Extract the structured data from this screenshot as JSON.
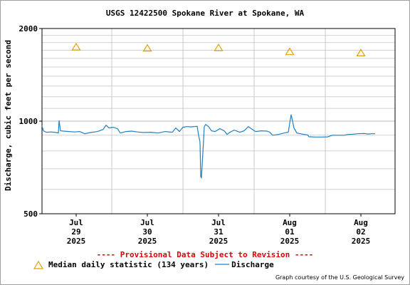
{
  "chart_data": {
    "type": "line",
    "title": "USGS 12422500 Spokane River at Spokane, WA",
    "xlabel": "",
    "ylabel": "Discharge, cubic feet per second",
    "y_scale": "log",
    "ylim": [
      500,
      2000
    ],
    "y_ticks": [
      "500",
      "1000",
      "2000"
    ],
    "xlim": [
      -0.48,
      4.48
    ],
    "x_ticks": [
      {
        "month": "Jul",
        "day": "29",
        "year": "2025"
      },
      {
        "month": "Jul",
        "day": "30",
        "year": "2025"
      },
      {
        "month": "Jul",
        "day": "31",
        "year": "2025"
      },
      {
        "month": "Aug",
        "day": "01",
        "year": "2025"
      },
      {
        "month": "Aug",
        "day": "02",
        "year": "2025"
      }
    ],
    "grid": true,
    "legend_position": "bottom-left",
    "series": [
      {
        "name": "Median daily statistic (134 years)",
        "marker": "triangle",
        "color": "#e0a000",
        "points": [
          {
            "x": 0.0,
            "y": 1740
          },
          {
            "x": 1.0,
            "y": 1725
          },
          {
            "x": 2.0,
            "y": 1730
          },
          {
            "x": 3.0,
            "y": 1680
          },
          {
            "x": 4.0,
            "y": 1665
          }
        ]
      },
      {
        "name": "Discharge",
        "marker": "line",
        "color": "#2080c0",
        "points": [
          {
            "x": -0.48,
            "y": 965
          },
          {
            "x": -0.46,
            "y": 930
          },
          {
            "x": -0.42,
            "y": 920
          },
          {
            "x": -0.35,
            "y": 922
          },
          {
            "x": -0.28,
            "y": 918
          },
          {
            "x": -0.25,
            "y": 915
          },
          {
            "x": -0.24,
            "y": 1005
          },
          {
            "x": -0.22,
            "y": 930
          },
          {
            "x": -0.18,
            "y": 928
          },
          {
            "x": -0.1,
            "y": 925
          },
          {
            "x": -0.02,
            "y": 922
          },
          {
            "x": 0.05,
            "y": 925
          },
          {
            "x": 0.12,
            "y": 910
          },
          {
            "x": 0.2,
            "y": 918
          },
          {
            "x": 0.3,
            "y": 925
          },
          {
            "x": 0.38,
            "y": 940
          },
          {
            "x": 0.42,
            "y": 970
          },
          {
            "x": 0.46,
            "y": 950
          },
          {
            "x": 0.52,
            "y": 955
          },
          {
            "x": 0.58,
            "y": 945
          },
          {
            "x": 0.62,
            "y": 915
          },
          {
            "x": 0.7,
            "y": 925
          },
          {
            "x": 0.78,
            "y": 928
          },
          {
            "x": 0.86,
            "y": 922
          },
          {
            "x": 0.95,
            "y": 918
          },
          {
            "x": 1.05,
            "y": 920
          },
          {
            "x": 1.15,
            "y": 915
          },
          {
            "x": 1.25,
            "y": 925
          },
          {
            "x": 1.35,
            "y": 920
          },
          {
            "x": 1.4,
            "y": 950
          },
          {
            "x": 1.45,
            "y": 925
          },
          {
            "x": 1.5,
            "y": 955
          },
          {
            "x": 1.55,
            "y": 960
          },
          {
            "x": 1.62,
            "y": 958
          },
          {
            "x": 1.7,
            "y": 962
          },
          {
            "x": 1.72,
            "y": 900
          },
          {
            "x": 1.74,
            "y": 855
          },
          {
            "x": 1.75,
            "y": 660
          },
          {
            "x": 1.76,
            "y": 655
          },
          {
            "x": 1.78,
            "y": 790
          },
          {
            "x": 1.8,
            "y": 960
          },
          {
            "x": 1.82,
            "y": 975
          },
          {
            "x": 1.86,
            "y": 960
          },
          {
            "x": 1.9,
            "y": 930
          },
          {
            "x": 1.95,
            "y": 925
          },
          {
            "x": 2.02,
            "y": 945
          },
          {
            "x": 2.08,
            "y": 930
          },
          {
            "x": 2.12,
            "y": 905
          },
          {
            "x": 2.16,
            "y": 920
          },
          {
            "x": 2.22,
            "y": 935
          },
          {
            "x": 2.3,
            "y": 920
          },
          {
            "x": 2.36,
            "y": 930
          },
          {
            "x": 2.42,
            "y": 960
          },
          {
            "x": 2.46,
            "y": 945
          },
          {
            "x": 2.52,
            "y": 925
          },
          {
            "x": 2.6,
            "y": 930
          },
          {
            "x": 2.68,
            "y": 928
          },
          {
            "x": 2.72,
            "y": 920
          },
          {
            "x": 2.76,
            "y": 900
          },
          {
            "x": 2.84,
            "y": 905
          },
          {
            "x": 2.92,
            "y": 915
          },
          {
            "x": 2.98,
            "y": 920
          },
          {
            "x": 3.02,
            "y": 1050
          },
          {
            "x": 3.06,
            "y": 950
          },
          {
            "x": 3.1,
            "y": 915
          },
          {
            "x": 3.15,
            "y": 910
          },
          {
            "x": 3.2,
            "y": 905
          },
          {
            "x": 3.25,
            "y": 902
          },
          {
            "x": 3.27,
            "y": 890
          },
          {
            "x": 3.35,
            "y": 888
          },
          {
            "x": 3.45,
            "y": 888
          },
          {
            "x": 3.53,
            "y": 889
          },
          {
            "x": 3.6,
            "y": 900
          },
          {
            "x": 3.68,
            "y": 900
          },
          {
            "x": 3.76,
            "y": 900
          },
          {
            "x": 3.82,
            "y": 905
          },
          {
            "x": 3.88,
            "y": 906
          },
          {
            "x": 3.95,
            "y": 910
          },
          {
            "x": 4.05,
            "y": 912
          },
          {
            "x": 4.1,
            "y": 908
          },
          {
            "x": 4.15,
            "y": 910
          },
          {
            "x": 4.2,
            "y": 910
          }
        ]
      }
    ]
  },
  "provisional_notice": "---- Provisional Data Subject to Revision ----",
  "courtesy": "Graph courtesy of the U.S. Geological Survey"
}
